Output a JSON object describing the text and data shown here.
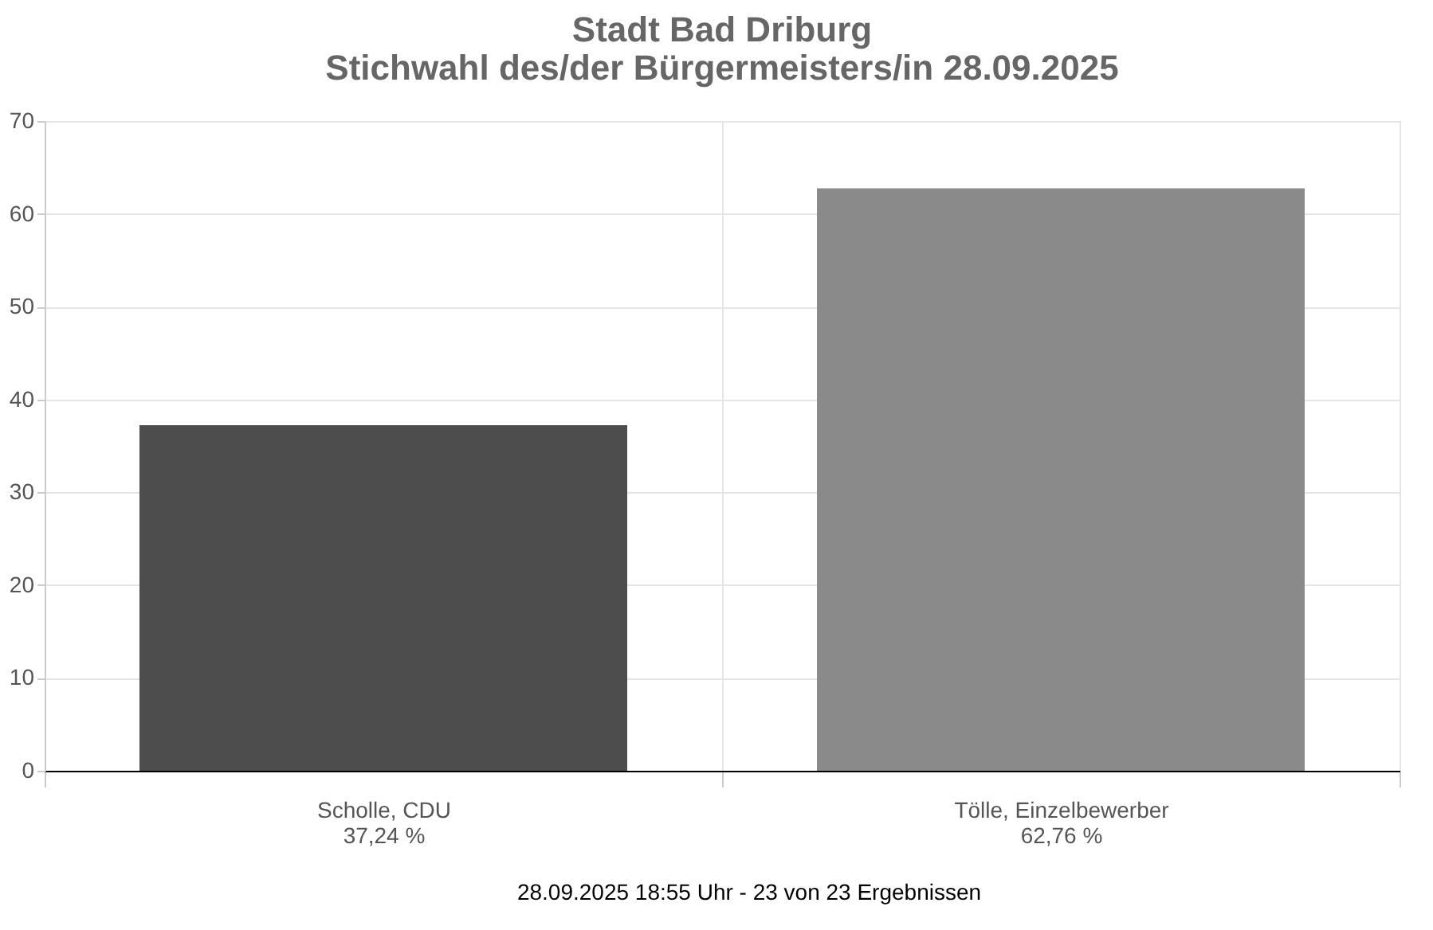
{
  "chart_data": {
    "type": "bar",
    "title": [
      "Stadt Bad Driburg",
      "Stichwahl des/der Bürgermeisters/in 28.09.2025"
    ],
    "categories": [
      "Scholle, CDU",
      "Tölle, Einzelbewerber"
    ],
    "values": [
      37.24,
      62.76
    ],
    "colors": [
      "#4d4d4d",
      "#8a8a8a"
    ],
    "value_labels": [
      "37,24 %",
      "62,76 %"
    ],
    "ylim": [
      0,
      70
    ],
    "yticks": [
      0,
      10,
      20,
      30,
      40,
      50,
      60,
      70
    ],
    "grid": true,
    "annotations": [
      "28.09.2025 18:55 Uhr - 23 von 23 Ergebnissen"
    ]
  }
}
